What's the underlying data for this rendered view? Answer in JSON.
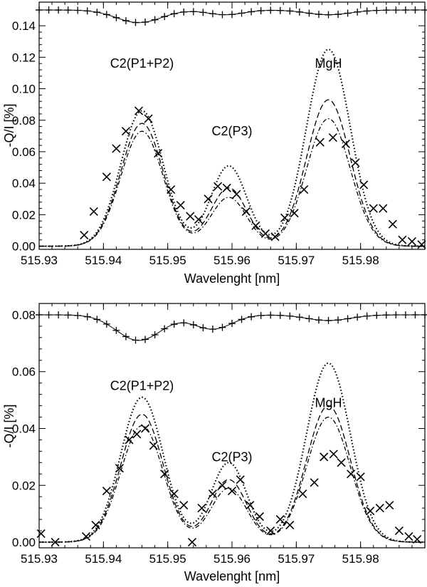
{
  "chart_data": [
    {
      "type": "line",
      "panel": "top",
      "xlabel": "Wavelenght [nm]",
      "ylabel": "-Q/I [%]",
      "xlim": [
        515.93,
        515.99
      ],
      "ylim": [
        -0.002,
        0.155
      ],
      "xticks": [
        515.93,
        515.94,
        515.95,
        515.96,
        515.97,
        515.98
      ],
      "xtick_labels": [
        "515.93",
        "515.94",
        "515.95",
        "515.96",
        "515.97",
        "515.98"
      ],
      "yticks": [
        0.0,
        0.02,
        0.04,
        0.06,
        0.08,
        0.1,
        0.12,
        0.14
      ],
      "ytick_labels": [
        "0.00",
        "0.02",
        "0.04",
        "0.06",
        "0.08",
        "0.10",
        "0.12",
        "0.14"
      ],
      "annotations": [
        {
          "text": "C2(P1+P2)",
          "x": 515.946,
          "y": 0.116
        },
        {
          "text": "C2(P3)",
          "x": 515.96,
          "y": 0.073
        },
        {
          "text": "MgH",
          "x": 515.975,
          "y": 0.116
        }
      ],
      "peaks": [
        {
          "name": "C2(P1+P2)",
          "center": 515.946,
          "sigma": 0.0033
        },
        {
          "name": "C2(P3)",
          "center": 515.9595,
          "sigma": 0.0028
        },
        {
          "name": "MgH",
          "center": 515.975,
          "sigma": 0.0034
        }
      ],
      "series": [
        {
          "name": "dotted",
          "style": "dotted",
          "amplitudes": [
            0.086,
            0.051,
            0.125
          ]
        },
        {
          "name": "dashed",
          "style": "dashed",
          "amplitudes": [
            0.078,
            0.037,
            0.093
          ]
        },
        {
          "name": "dash-dot",
          "style": "dashdot",
          "amplitudes": [
            0.073,
            0.031,
            0.081
          ]
        }
      ],
      "observed_x": {
        "marker": "x",
        "points": [
          [
            515.937,
            0.007
          ],
          [
            515.9385,
            0.022
          ],
          [
            515.9405,
            0.044
          ],
          [
            515.942,
            0.062
          ],
          [
            515.9435,
            0.073
          ],
          [
            515.9455,
            0.086
          ],
          [
            515.947,
            0.081
          ],
          [
            515.9485,
            0.059
          ],
          [
            515.9505,
            0.036
          ],
          [
            515.952,
            0.026
          ],
          [
            515.9535,
            0.019
          ],
          [
            515.9548,
            0.017
          ],
          [
            515.9563,
            0.03
          ],
          [
            515.9578,
            0.038
          ],
          [
            515.9592,
            0.037
          ],
          [
            515.9607,
            0.033
          ],
          [
            515.9622,
            0.022
          ],
          [
            515.9637,
            0.013
          ],
          [
            515.9652,
            0.008
          ],
          [
            515.9667,
            0.006
          ],
          [
            515.9682,
            0.018
          ],
          [
            515.9697,
            0.021
          ],
          [
            515.9712,
            0.036
          ],
          [
            515.9737,
            0.066
          ],
          [
            515.9757,
            0.069
          ],
          [
            515.9777,
            0.065
          ],
          [
            515.9792,
            0.053
          ],
          [
            515.9805,
            0.039
          ],
          [
            515.982,
            0.024
          ],
          [
            515.9835,
            0.024
          ],
          [
            515.985,
            0.014
          ],
          [
            515.9865,
            0.004
          ],
          [
            515.988,
            0.003
          ],
          [
            515.9895,
            0.001
          ]
        ]
      },
      "intensity_profile": {
        "baseline": 0.15,
        "dips": [
          {
            "center": 515.9455,
            "depth": 0.008,
            "sigma": 0.0035
          },
          {
            "center": 515.959,
            "depth": 0.003,
            "sigma": 0.0028
          },
          {
            "center": 515.975,
            "depth": 0.003,
            "sigma": 0.0034
          }
        ],
        "plus_offsets": [
          0.002,
          0.002,
          0.0015,
          0.002,
          0.002
        ]
      }
    },
    {
      "type": "line",
      "panel": "bottom",
      "xlabel": "Wavelenght [nm]",
      "ylabel": "-Q/I [%]",
      "xlim": [
        515.93,
        515.99
      ],
      "ylim": [
        -0.002,
        0.084
      ],
      "xticks": [
        515.93,
        515.94,
        515.95,
        515.96,
        515.97,
        515.98
      ],
      "xtick_labels": [
        "515.93",
        "515.94",
        "515.95",
        "515.96",
        "515.97",
        "515.98"
      ],
      "yticks": [
        0.0,
        0.02,
        0.04,
        0.06,
        0.08
      ],
      "ytick_labels": [
        "0.00",
        "0.02",
        "0.04",
        "0.06",
        "0.08"
      ],
      "annotations": [
        {
          "text": "C2(P1+P2)",
          "x": 515.946,
          "y": 0.055
        },
        {
          "text": "C2(P3)",
          "x": 515.96,
          "y": 0.03
        },
        {
          "text": "MgH",
          "x": 515.975,
          "y": 0.049
        }
      ],
      "peaks": [
        {
          "name": "C2(P1+P2)",
          "center": 515.946,
          "sigma": 0.0033
        },
        {
          "name": "C2(P3)",
          "center": 515.9595,
          "sigma": 0.0028
        },
        {
          "name": "MgH",
          "center": 515.975,
          "sigma": 0.0034
        }
      ],
      "series": [
        {
          "name": "dotted",
          "style": "dotted",
          "amplitudes": [
            0.051,
            0.028,
            0.063
          ]
        },
        {
          "name": "dashed",
          "style": "dashed",
          "amplitudes": [
            0.045,
            0.022,
            0.048
          ]
        },
        {
          "name": "dash-dot",
          "style": "dashdot",
          "amplitudes": [
            0.041,
            0.019,
            0.044
          ]
        }
      ],
      "observed_x": {
        "marker": "x",
        "points": [
          [
            515.9303,
            0.003
          ],
          [
            515.9325,
            0.0
          ],
          [
            515.9373,
            0.002
          ],
          [
            515.9388,
            0.006
          ],
          [
            515.9405,
            0.018
          ],
          [
            515.9425,
            0.026
          ],
          [
            515.944,
            0.036
          ],
          [
            515.9452,
            0.038
          ],
          [
            515.9465,
            0.04
          ],
          [
            515.9478,
            0.034
          ],
          [
            515.9495,
            0.024
          ],
          [
            515.951,
            0.017
          ],
          [
            515.9525,
            0.013
          ],
          [
            515.9538,
            0.0
          ],
          [
            515.9553,
            0.012
          ],
          [
            515.957,
            0.017
          ],
          [
            515.9585,
            0.02
          ],
          [
            515.96,
            0.018
          ],
          [
            515.9613,
            0.022
          ],
          [
            515.9628,
            0.013
          ],
          [
            515.9643,
            0.009
          ],
          [
            515.966,
            0.004
          ],
          [
            515.9675,
            0.008
          ],
          [
            515.969,
            0.006
          ],
          [
            515.971,
            0.017
          ],
          [
            515.9728,
            0.021
          ],
          [
            515.9743,
            0.03
          ],
          [
            515.9758,
            0.031
          ],
          [
            515.977,
            0.028
          ],
          [
            515.9785,
            0.024
          ],
          [
            515.98,
            0.023
          ],
          [
            515.9815,
            0.011
          ],
          [
            515.983,
            0.012
          ],
          [
            515.9845,
            0.013
          ],
          [
            515.986,
            0.004
          ],
          [
            515.9875,
            0.002
          ],
          [
            515.9888,
            0.001
          ]
        ]
      },
      "intensity_profile": {
        "baseline": 0.08,
        "dips": [
          {
            "center": 515.9455,
            "depth": 0.009,
            "sigma": 0.0035
          },
          {
            "center": 515.957,
            "depth": 0.005,
            "sigma": 0.003
          },
          {
            "center": 515.975,
            "depth": 0.002,
            "sigma": 0.0034
          }
        ],
        "plus_offsets": [
          0.0,
          0.0,
          0.002,
          0.0,
          0.0
        ]
      }
    }
  ]
}
